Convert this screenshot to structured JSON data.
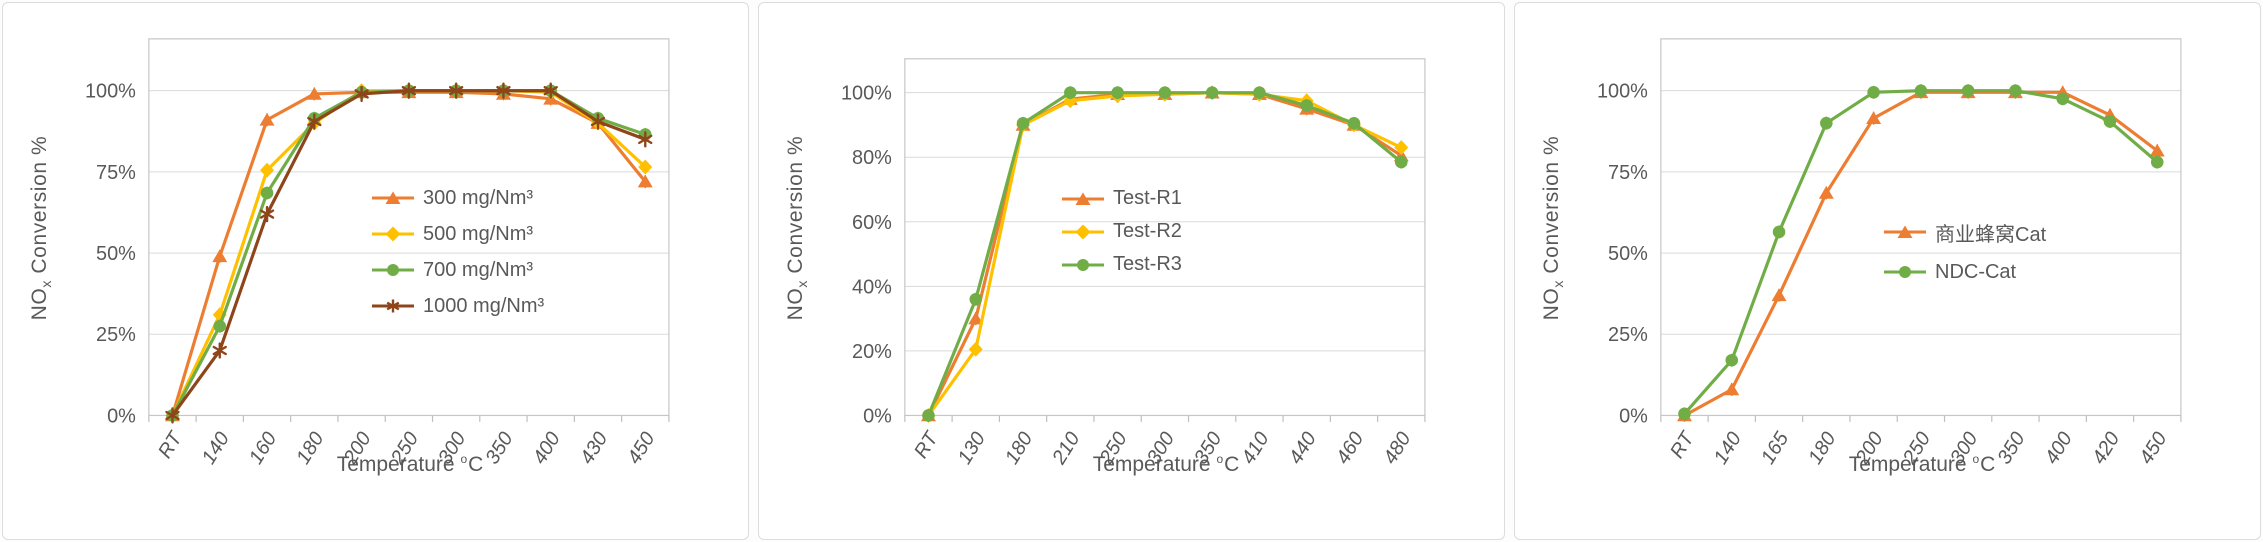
{
  "colors": {
    "axis_text": "#595959",
    "gridline": "#dadada",
    "plot_border": "#c6c6c6",
    "tick": "#bfbfbf",
    "panel_border": "#dcdcdc",
    "orange": "#ED7D31",
    "gold": "#FFC000",
    "green": "#70AD47",
    "brown": "#8E4519"
  },
  "chart_data": [
    {
      "type": "line",
      "categories": [
        "RT",
        "140",
        "160",
        "180",
        "200",
        "250",
        "300",
        "350",
        "400",
        "430",
        "450"
      ],
      "xlabel": "Temperature °C",
      "xlabel_parts": {
        "text": "Temperature ",
        "sup": "o",
        "unit": "C"
      },
      "ylabel": "NOx Conversion %",
      "ylabel_parts": {
        "pre": "NO",
        "sub": "x",
        "post": " Conversion %"
      },
      "ylim": [
        0,
        100
      ],
      "yticks": [
        "0%",
        "25%",
        "50%",
        "75%",
        "100%"
      ],
      "ytick_values": [
        0,
        25,
        50,
        75,
        100
      ],
      "grid": "horizontal",
      "legend_position": "inside-middle",
      "series": [
        {
          "name": "300 mg/Nm³",
          "color": "#ED7D31",
          "marker": "triangle",
          "values": [
            0,
            49,
            91,
            99,
            99.5,
            99.5,
            99.5,
            99,
            97.5,
            90,
            72
          ]
        },
        {
          "name": "500 mg/Nm³",
          "color": "#FFC000",
          "marker": "diamond",
          "values": [
            0,
            31,
            75.5,
            90,
            100,
            100,
            100,
            100,
            99.5,
            90,
            76.5
          ]
        },
        {
          "name": "700 mg/Nm³",
          "color": "#70AD47",
          "marker": "circle",
          "values": [
            0,
            27.5,
            68.5,
            91.5,
            99.5,
            100,
            100,
            100,
            100,
            91.5,
            86.5
          ]
        },
        {
          "name": "1000 mg/Nm³",
          "color": "#8E4519",
          "marker": "asterisk",
          "values": [
            0,
            20,
            62,
            90.5,
            99,
            100,
            100,
            100,
            100,
            90.5,
            85
          ]
        }
      ]
    },
    {
      "type": "line",
      "categories": [
        "RT",
        "130",
        "180",
        "210",
        "250",
        "300",
        "350",
        "410",
        "440",
        "460",
        "480"
      ],
      "xlabel": "Temperature °C",
      "xlabel_parts": {
        "text": "Temperature ",
        "sup": "o",
        "unit": "C"
      },
      "ylabel": "NOx Conversion %",
      "ylabel_parts": {
        "pre": "NO",
        "sub": "x",
        "post": " Conversion %"
      },
      "ylim": [
        0,
        100
      ],
      "yticks": [
        "0%",
        "20%",
        "40%",
        "60%",
        "80%",
        "100%"
      ],
      "ytick_values": [
        0,
        20,
        40,
        60,
        80,
        100
      ],
      "grid": "horizontal",
      "legend_position": "inside-middle",
      "series": [
        {
          "name": "Test-R1",
          "color": "#ED7D31",
          "marker": "triangle",
          "values": [
            0,
            30,
            90,
            98,
            99.5,
            99.5,
            100,
            99.5,
            95,
            90,
            80.5
          ]
        },
        {
          "name": "Test-R2",
          "color": "#FFC000",
          "marker": "diamond",
          "values": [
            0,
            20.5,
            90,
            97.5,
            99,
            99.5,
            100,
            99.5,
            97.5,
            90,
            83
          ]
        },
        {
          "name": "Test-R3",
          "color": "#70AD47",
          "marker": "circle",
          "values": [
            0,
            36,
            90.5,
            100,
            100,
            100,
            100,
            100,
            96,
            90.5,
            78.5
          ]
        }
      ]
    },
    {
      "type": "line",
      "categories": [
        "RT",
        "140",
        "165",
        "180",
        "200",
        "250",
        "300",
        "350",
        "400",
        "420",
        "450"
      ],
      "xlabel": "Temperature °C",
      "xlabel_parts": {
        "text": "Temperature ",
        "sup": "o",
        "unit": "C"
      },
      "ylabel": "NOx Conversion %",
      "ylabel_parts": {
        "pre": "NO",
        "sub": "x",
        "post": " Conversion %"
      },
      "ylim": [
        0,
        100
      ],
      "yticks": [
        "0%",
        "25%",
        "50%",
        "75%",
        "100%"
      ],
      "ytick_values": [
        0,
        25,
        50,
        75,
        100
      ],
      "grid": "horizontal",
      "legend_position": "inside-middle",
      "series": [
        {
          "name": "商业蜂窝Cat",
          "color": "#ED7D31",
          "marker": "triangle",
          "values": [
            0,
            8,
            37,
            68.5,
            91.5,
            99.5,
            99.5,
            99.5,
            99.5,
            92.5,
            81.5
          ]
        },
        {
          "name": "NDC-Cat",
          "color": "#70AD47",
          "marker": "circle",
          "values": [
            0.5,
            17,
            56.5,
            90,
            99.5,
            100,
            100,
            100,
            97.5,
            90.5,
            78
          ]
        }
      ]
    }
  ]
}
